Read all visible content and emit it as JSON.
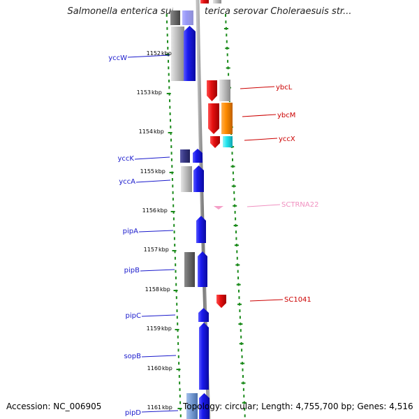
{
  "title": "Salmonella enterica subsp. enterica serovar Choleraesuis str...",
  "footer": {
    "accession": "Accession: NC_006905",
    "topology": "Topology: circular; Length: 4,755,700 bp; Genes: 4,516"
  },
  "ruler": {
    "unit": "kbp",
    "ticks": [
      1152,
      1153,
      1154,
      1155,
      1156,
      1157,
      1158,
      1159,
      1160,
      1161
    ]
  },
  "colors": {
    "blue": "#1a1aee",
    "light_blue": "#7b9fd6",
    "navy": "#3a3a86",
    "grey": "#b5b5b5",
    "dark_grey": "#6a6a6a",
    "red": "#e51010",
    "orange": "#ff8c00",
    "cyan": "#22e5ee",
    "pink": "#f5a0c8",
    "left_label": "#1a1acc",
    "right_label": "#cc0000",
    "trna_label": "#f090c0",
    "dots": "#1a8a1a"
  },
  "labels_left": [
    {
      "name": "yccW"
    },
    {
      "name": "yccK"
    },
    {
      "name": "yccA"
    },
    {
      "name": "pipA"
    },
    {
      "name": "pipB"
    },
    {
      "name": "pipC"
    },
    {
      "name": "sopB"
    },
    {
      "name": "pipD"
    }
  ],
  "labels_right": [
    {
      "name": "ybcL"
    },
    {
      "name": "ybcM"
    },
    {
      "name": "yccX"
    },
    {
      "name": "SCTRNA22"
    },
    {
      "name": "SC1041"
    }
  ]
}
